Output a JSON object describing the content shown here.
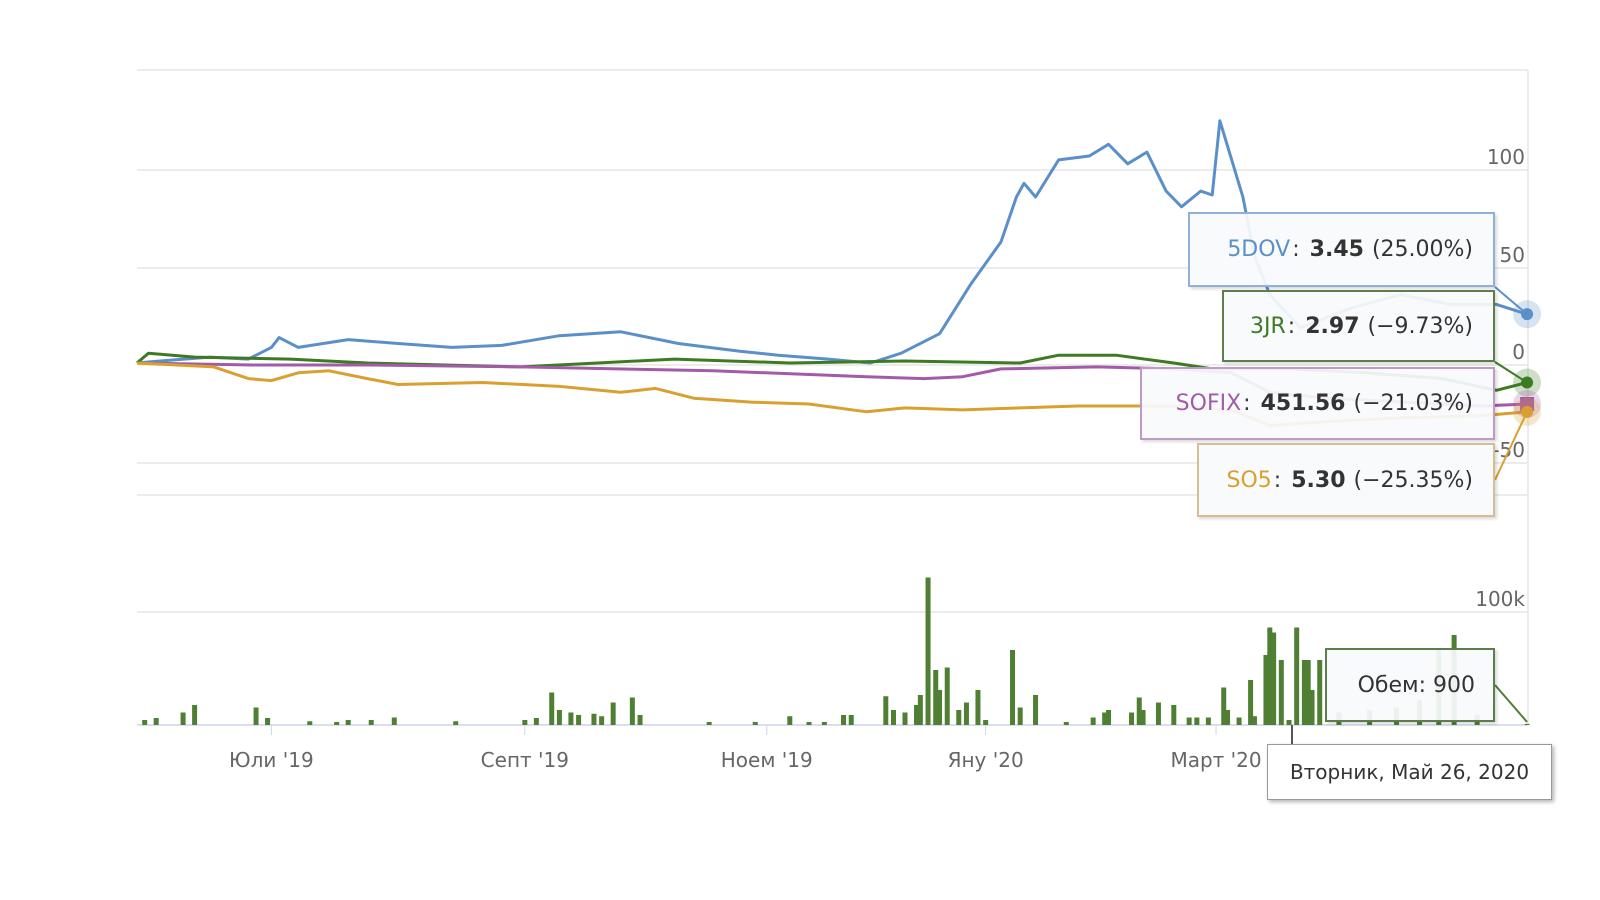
{
  "chart_data": {
    "type": "line",
    "title": "",
    "xlabel": "",
    "ylabel": "",
    "x_unit": "days since start (end = Вторник, Май 26, 2020)",
    "ylim": [
      -50,
      100
    ],
    "yticks": [
      "100",
      "50",
      "0",
      "-50"
    ],
    "ytick_values": [
      100,
      50,
      0,
      -50
    ],
    "xticks": [
      {
        "day": 35,
        "label": "Юли '19"
      },
      {
        "day": 101,
        "label": "Септ '19"
      },
      {
        "day": 164,
        "label": "Ноем '19"
      },
      {
        "day": 221,
        "label": "Яну '20"
      },
      {
        "day": 281,
        "label": "Март '20"
      }
    ],
    "grid": true,
    "series": [
      {
        "name": "5DOV",
        "color": "#5b8fc9",
        "points": [
          [
            0,
            0
          ],
          [
            6,
            1
          ],
          [
            19,
            3
          ],
          [
            29,
            2
          ],
          [
            35,
            8
          ],
          [
            37,
            13
          ],
          [
            42,
            8
          ],
          [
            55,
            12
          ],
          [
            68,
            10
          ],
          [
            82,
            8
          ],
          [
            95,
            9
          ],
          [
            110,
            14
          ],
          [
            126,
            16
          ],
          [
            141,
            10
          ],
          [
            157,
            6
          ],
          [
            167,
            4
          ],
          [
            180,
            2
          ],
          [
            191,
            0
          ],
          [
            199,
            5
          ],
          [
            209,
            15
          ],
          [
            217,
            40
          ],
          [
            225,
            62
          ],
          [
            229,
            85
          ],
          [
            231,
            92
          ],
          [
            234,
            85
          ],
          [
            240,
            104
          ],
          [
            248,
            106
          ],
          [
            253,
            112
          ],
          [
            258,
            102
          ],
          [
            263,
            108
          ],
          [
            268,
            88
          ],
          [
            272,
            80
          ],
          [
            277,
            88
          ],
          [
            280,
            86
          ],
          [
            282,
            124
          ],
          [
            288,
            85
          ],
          [
            291,
            55
          ],
          [
            295,
            35
          ],
          [
            303,
            18
          ],
          [
            316,
            28
          ],
          [
            329,
            35
          ],
          [
            342,
            30
          ],
          [
            354,
            30
          ],
          [
            362,
            25
          ]
        ]
      },
      {
        "name": "3JR",
        "color": "#3d7a22",
        "points": [
          [
            0,
            0
          ],
          [
            3,
            5
          ],
          [
            15,
            3
          ],
          [
            40,
            2
          ],
          [
            60,
            0
          ],
          [
            100,
            -2
          ],
          [
            120,
            0
          ],
          [
            140,
            2
          ],
          [
            170,
            0
          ],
          [
            200,
            1
          ],
          [
            230,
            0
          ],
          [
            240,
            4
          ],
          [
            255,
            4
          ],
          [
            270,
            0
          ],
          [
            280,
            -3
          ],
          [
            300,
            -3
          ],
          [
            320,
            -5
          ],
          [
            340,
            -8
          ],
          [
            354,
            -14
          ],
          [
            362,
            -10
          ]
        ]
      },
      {
        "name": "SOFIX",
        "color": "#a35aa8",
        "points": [
          [
            0,
            0
          ],
          [
            30,
            -1
          ],
          [
            60,
            -1
          ],
          [
            100,
            -2
          ],
          [
            150,
            -4
          ],
          [
            190,
            -7
          ],
          [
            205,
            -8
          ],
          [
            215,
            -7
          ],
          [
            225,
            -3
          ],
          [
            250,
            -2
          ],
          [
            270,
            -3
          ],
          [
            285,
            -5
          ],
          [
            295,
            -15
          ],
          [
            310,
            -18
          ],
          [
            330,
            -20
          ],
          [
            350,
            -22
          ],
          [
            362,
            -21
          ]
        ]
      },
      {
        "name": "SO5",
        "color": "#d9a030",
        "points": [
          [
            0,
            0
          ],
          [
            20,
            -2
          ],
          [
            29,
            -8
          ],
          [
            35,
            -9
          ],
          [
            42,
            -5
          ],
          [
            50,
            -4
          ],
          [
            60,
            -8
          ],
          [
            68,
            -11
          ],
          [
            90,
            -10
          ],
          [
            110,
            -12
          ],
          [
            126,
            -15
          ],
          [
            135,
            -13
          ],
          [
            145,
            -18
          ],
          [
            160,
            -20
          ],
          [
            175,
            -21
          ],
          [
            190,
            -25
          ],
          [
            200,
            -23
          ],
          [
            215,
            -24
          ],
          [
            230,
            -23
          ],
          [
            245,
            -22
          ],
          [
            270,
            -22
          ],
          [
            285,
            -24
          ],
          [
            295,
            -32
          ],
          [
            310,
            -30
          ],
          [
            330,
            -28
          ],
          [
            350,
            -27
          ],
          [
            362,
            -25
          ]
        ]
      }
    ],
    "volume": {
      "name": "Обем",
      "ytick_label": "100k",
      "color": "#4f7f32",
      "bars": [
        [
          2,
          4000
        ],
        [
          5,
          5600
        ],
        [
          12,
          10000
        ],
        [
          15,
          16000
        ],
        [
          31,
          14000
        ],
        [
          34,
          5600
        ],
        [
          45,
          3000
        ],
        [
          52,
          2400
        ],
        [
          55,
          4000
        ],
        [
          61,
          4000
        ],
        [
          67,
          6000
        ],
        [
          83,
          3000
        ],
        [
          101,
          4000
        ],
        [
          104,
          5600
        ],
        [
          108,
          26000
        ],
        [
          110,
          12000
        ],
        [
          113,
          10000
        ],
        [
          115,
          8000
        ],
        [
          119,
          9000
        ],
        [
          121,
          7000
        ],
        [
          124,
          18000
        ],
        [
          129,
          22000
        ],
        [
          131,
          8000
        ],
        [
          149,
          2400
        ],
        [
          161,
          2400
        ],
        [
          170,
          7000
        ],
        [
          175,
          2400
        ],
        [
          179,
          2400
        ],
        [
          184,
          8000
        ],
        [
          186,
          8000
        ],
        [
          195,
          23000
        ],
        [
          197,
          12000
        ],
        [
          200,
          10000
        ],
        [
          203,
          16000
        ],
        [
          204,
          24000
        ],
        [
          206,
          118000
        ],
        [
          208,
          44000
        ],
        [
          209,
          28000
        ],
        [
          211,
          46000
        ],
        [
          214,
          12000
        ],
        [
          216,
          18000
        ],
        [
          219,
          28000
        ],
        [
          221,
          4000
        ],
        [
          228,
          60000
        ],
        [
          230,
          14000
        ],
        [
          234,
          24000
        ],
        [
          242,
          2400
        ],
        [
          249,
          6000
        ],
        [
          252,
          10000
        ],
        [
          253,
          12000
        ],
        [
          259,
          10000
        ],
        [
          261,
          22000
        ],
        [
          262,
          12000
        ],
        [
          266,
          18000
        ],
        [
          270,
          16000
        ],
        [
          274,
          6000
        ],
        [
          276,
          6000
        ],
        [
          279,
          6000
        ],
        [
          283,
          30000
        ],
        [
          284,
          12000
        ],
        [
          287,
          6000
        ],
        [
          290,
          36000
        ],
        [
          291,
          7000
        ],
        [
          294,
          56000
        ],
        [
          295,
          78000
        ],
        [
          296,
          74000
        ],
        [
          298,
          52000
        ],
        [
          300,
          4000
        ],
        [
          302,
          78000
        ],
        [
          304,
          52000
        ],
        [
          305,
          52000
        ],
        [
          306,
          28000
        ],
        [
          308,
          52000
        ],
        [
          313,
          10000
        ],
        [
          321,
          12000
        ],
        [
          328,
          14000
        ],
        [
          334,
          20000
        ],
        [
          339,
          60000
        ],
        [
          343,
          72000
        ],
        [
          349,
          8000
        ],
        [
          362,
          900
        ]
      ]
    }
  },
  "tooltips": {
    "series": [
      {
        "name": "5DOV",
        "value": "3.45",
        "change": "(25.00%)",
        "color": "#5b8fc9",
        "border": "#8fb1d8"
      },
      {
        "name": "3JR",
        "value": "2.97",
        "change": "(−9.73%)",
        "color": "#3d7a22",
        "border": "#5e7d4c"
      },
      {
        "name": "SOFIX",
        "value": "451.56",
        "change": "(−21.03%)",
        "color": "#a35aa8",
        "border": "#bf9ac6"
      },
      {
        "name": "SO5",
        "value": "5.30",
        "change": "(−25.35%)",
        "color": "#d9a030",
        "border": "#d6bd93"
      }
    ],
    "volume_label": "Обем:",
    "volume_value": "900",
    "date": "Вторник, Май 26, 2020"
  }
}
